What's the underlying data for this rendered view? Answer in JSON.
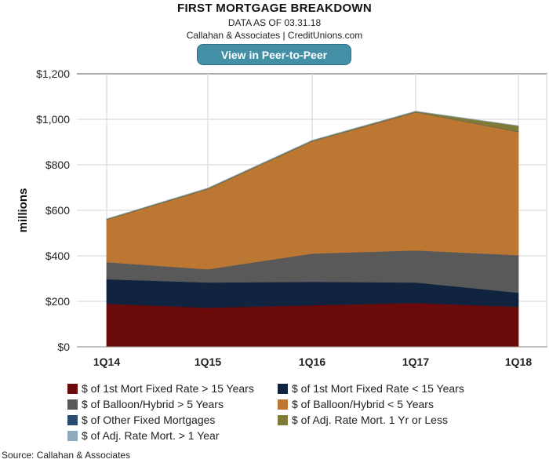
{
  "header": {
    "title": "FIRST MORTGAGE BREAKDOWN",
    "data_as_of": "DATA AS OF 03.31.18",
    "credit": "Callahan & Associates | CreditUnions.com",
    "button_label": "View in Peer-to-Peer"
  },
  "source": "Source: Callahan & Associates",
  "chart_data": {
    "type": "area",
    "stacked": true,
    "title": "FIRST MORTGAGE BREAKDOWN",
    "ylabel": "millions",
    "xlabel": "",
    "ylim": [
      0,
      1200
    ],
    "yticks": [
      0,
      200,
      400,
      600,
      800,
      1000,
      1200
    ],
    "ytick_labels": [
      "$0",
      "$200",
      "$400",
      "$600",
      "$800",
      "$1,000",
      "$1,200"
    ],
    "categories": [
      "1Q14",
      "1Q15",
      "1Q16",
      "1Q17",
      "1Q18"
    ],
    "grid": true,
    "legend_position": "bottom",
    "series": [
      {
        "name": "$ of 1st Mort Fixed Rate > 15 Years",
        "color": "#6b0a0a",
        "values": [
          190,
          172,
          183,
          193,
          176
        ]
      },
      {
        "name": "$ of 1st Mort Fixed Rate < 15 Years",
        "color": "#10233f",
        "values": [
          107,
          111,
          103,
          90,
          62
        ]
      },
      {
        "name": "$ of Balloon/Hybrid > 5 Years",
        "color": "#595959",
        "values": [
          75,
          58,
          124,
          141,
          165
        ]
      },
      {
        "name": "$ of Balloon/Hybrid < 5 Years",
        "color": "#bc7733",
        "values": [
          187,
          352,
          493,
          607,
          542
        ]
      },
      {
        "name": "$ of Other Fixed Mortgages",
        "color": "#2b4a6f",
        "values": [
          1,
          1,
          1,
          1,
          1
        ]
      },
      {
        "name": "$ of Adj. Rate Mort. 1 Yr or Less",
        "color": "#7f7a38",
        "values": [
          2,
          3,
          3,
          3,
          25
        ]
      },
      {
        "name": "$ of Adj. Rate Mort. > 1 Year",
        "color": "#8fa9bd",
        "values": [
          1,
          1,
          1,
          1,
          1
        ]
      }
    ]
  }
}
